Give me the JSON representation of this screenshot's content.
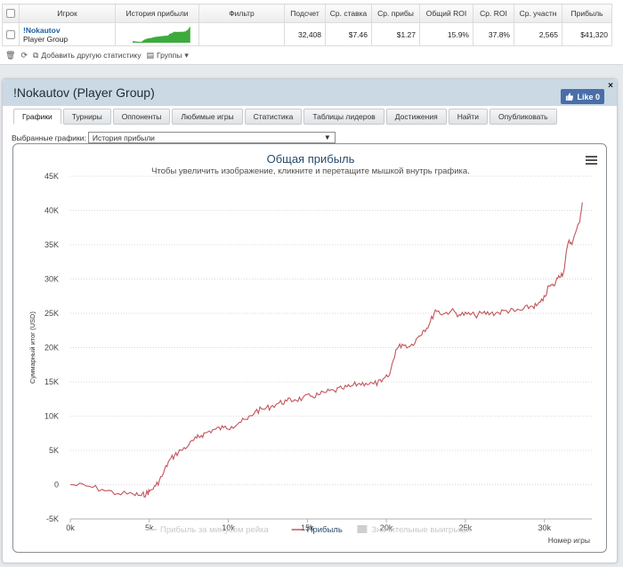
{
  "stats_table": {
    "headers": [
      "Игрок",
      "История прибыли",
      "Фильтр",
      "Подсчет",
      "Ср. ставка",
      "Ср. прибы",
      "Общий ROI",
      "Ср. ROI",
      "Ср. участн",
      "Прибыль"
    ],
    "player": "!Nokautov",
    "group": "Player Group",
    "filter": "",
    "count": "32,408",
    "avg_stake": "$7.46",
    "avg_profit": "$1.27",
    "total_roi": "15.9%",
    "avg_roi": "37.8%",
    "avg_entrants": "2,565",
    "profit": "$41,320",
    "sparkline_color": "#3cab3c"
  },
  "toolbar": {
    "add_stat_label": "Добавить другую статистику",
    "groups_label": "Группы"
  },
  "window": {
    "title": "!Nokautov (Player Group)",
    "like_label": "Like 0",
    "close_label": "×"
  },
  "tabs": [
    "Графики",
    "Турниры",
    "Оппоненты",
    "Любимые игры",
    "Статистика",
    "Таблицы лидеров",
    "Достижения",
    "Найти",
    "Опубликовать"
  ],
  "selector": {
    "label": "Выбранные графики:",
    "value": "История прибыли"
  },
  "chart_data": {
    "type": "line",
    "title": "Общая прибыль",
    "subtitle": "Чтобы увеличить изображение, кликните и перетащите мышкой внутрь графика.",
    "xlabel": "Номер игры",
    "ylabel": "Суммарный итог (USD)",
    "xlim": [
      0,
      33000
    ],
    "ylim": [
      -5000,
      45000
    ],
    "x_ticks": [
      "0k",
      "5k",
      "10k",
      "15k",
      "20k",
      "25k",
      "30k"
    ],
    "x_tick_values": [
      0,
      5000,
      10000,
      15000,
      20000,
      25000,
      30000
    ],
    "y_ticks": [
      "-5K",
      "0",
      "5K",
      "10K",
      "15K",
      "20K",
      "25K",
      "30K",
      "35K",
      "40K",
      "45K"
    ],
    "y_tick_values": [
      -5000,
      0,
      5000,
      10000,
      15000,
      20000,
      25000,
      30000,
      35000,
      40000,
      45000
    ],
    "grid": true,
    "legend_position": "bottom",
    "series": [
      {
        "name": "Прибыль",
        "color": "#c2555b",
        "x": [
          0,
          1000,
          2000,
          3000,
          4000,
          4500,
          4800,
          5000,
          5400,
          5800,
          6200,
          6600,
          7000,
          7500,
          8000,
          8300,
          8700,
          9200,
          9700,
          10200,
          10700,
          11200,
          11700,
          12200,
          12700,
          13200,
          13700,
          14200,
          14700,
          15200,
          15700,
          16200,
          16700,
          17200,
          17700,
          18200,
          18700,
          19200,
          19700,
          20200,
          20600,
          21000,
          21500,
          22000,
          22300,
          22700,
          23100,
          23600,
          24100,
          24600,
          25100,
          25600,
          26100,
          26600,
          27100,
          27600,
          28100,
          28600,
          29100,
          29500,
          29900,
          30300,
          30600,
          30900,
          31200,
          31500,
          31800,
          32200,
          32400
        ],
        "y": [
          0,
          -200,
          -700,
          -1300,
          -1400,
          -1600,
          -1300,
          -1000,
          -200,
          1200,
          3300,
          4300,
          5000,
          5800,
          6800,
          7200,
          7700,
          8100,
          8300,
          8500,
          9100,
          9500,
          10700,
          11000,
          11400,
          11900,
          12200,
          12400,
          12600,
          12900,
          13100,
          13500,
          13700,
          14000,
          14300,
          14700,
          14800,
          14700,
          15000,
          16000,
          19700,
          20500,
          20200,
          21500,
          22400,
          23300,
          25500,
          24900,
          25400,
          24800,
          24900,
          24700,
          25000,
          25000,
          25100,
          25400,
          25300,
          25500,
          26000,
          26100,
          26800,
          29000,
          29000,
          30500,
          30900,
          35300,
          35500,
          38200,
          41200
        ]
      }
    ],
    "legend": [
      {
        "name": "Прибыль за минусом рейка",
        "color": "#d9d9d9",
        "kind": "line",
        "muted": true
      },
      {
        "name": "Прибыль",
        "color": "#c2555b",
        "kind": "line",
        "muted": false
      },
      {
        "name": "Значительные выигрыши",
        "color": "#cfcfcf",
        "kind": "box",
        "muted": true
      }
    ]
  }
}
